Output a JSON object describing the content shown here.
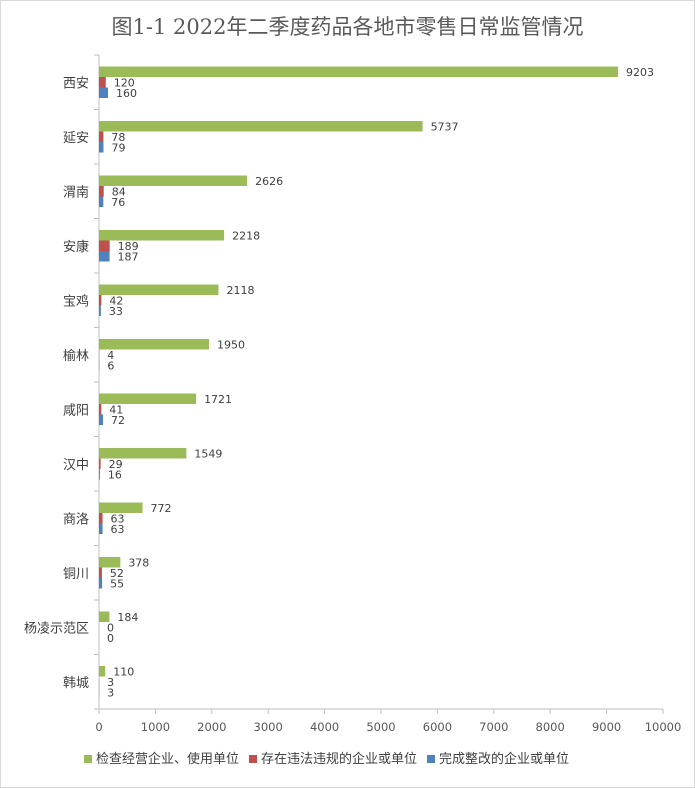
{
  "chart_data": {
    "type": "bar",
    "orientation": "horizontal",
    "title": "图1-1  2022年二季度药品各地市零售日常监管情况",
    "categories": [
      "西安",
      "延安",
      "渭南",
      "安康",
      "宝鸡",
      "榆林",
      "咸阳",
      "汉中",
      "商洛",
      "铜川",
      "杨凌示范区",
      "韩城"
    ],
    "series": [
      {
        "name": "检查经营企业、使用单位",
        "color": "#9bbb59",
        "values": [
          9203,
          5737,
          2626,
          2218,
          2118,
          1950,
          1721,
          1549,
          772,
          378,
          184,
          110
        ]
      },
      {
        "name": "存在违法违规的企业或单位",
        "color": "#c0504d",
        "values": [
          120,
          78,
          84,
          189,
          42,
          4,
          41,
          29,
          63,
          52,
          0,
          3
        ]
      },
      {
        "name": "完成整改的企业或单位",
        "color": "#4f81bd",
        "values": [
          160,
          79,
          76,
          187,
          33,
          6,
          72,
          16,
          63,
          55,
          0,
          3
        ]
      }
    ],
    "xlim": [
      0,
      10000
    ],
    "xticks": [
      0,
      1000,
      2000,
      3000,
      4000,
      5000,
      6000,
      7000,
      8000,
      9000,
      10000
    ],
    "grid": false,
    "legend_position": "bottom",
    "data_labels": true
  }
}
